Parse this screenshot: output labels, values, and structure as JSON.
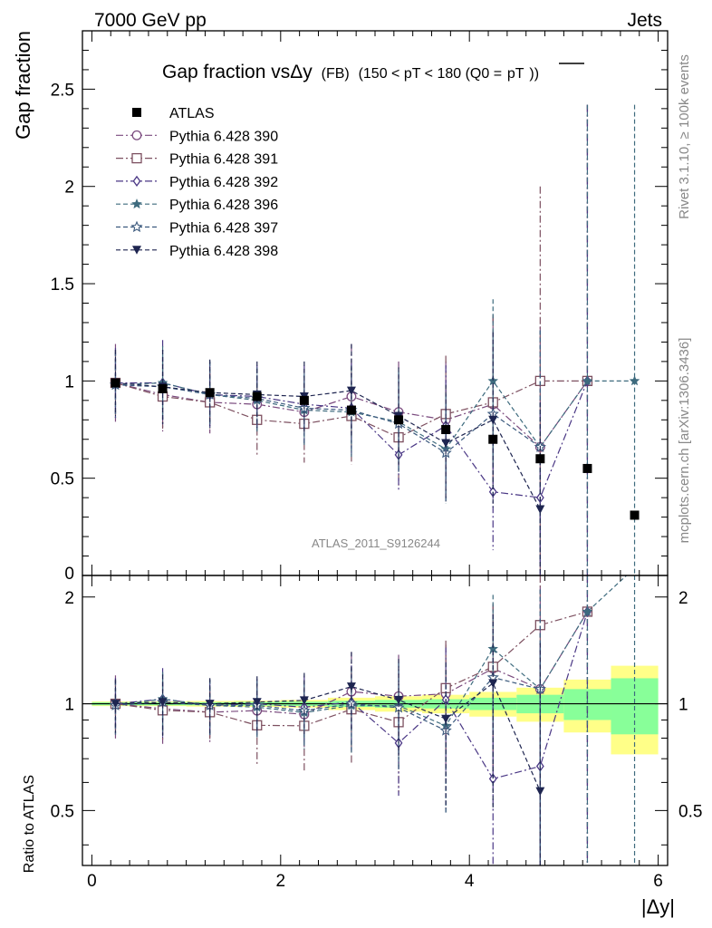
{
  "header": {
    "left": "7000 GeV pp",
    "right": "Jets"
  },
  "side_text": {
    "top": "Rivet 3.1.10, ≥ 100k events",
    "bottom": "mcplots.cern.ch [arXiv:1306.3436]"
  },
  "watermark": "ATLAS_2011_S9126244",
  "chart_data": {
    "type": "scatter",
    "title": "Gap fraction vsΔy",
    "title_fb": "(FB)",
    "title_cut": "(150 < pT < 180 (Q0 =",
    "title_over": "pT",
    "title_end": "))",
    "ylabel": "Gap fraction",
    "ratio_ylabel": "Ratio to ATLAS",
    "xlabel": "|Δy|",
    "xlim": [
      -0.1,
      6.1
    ],
    "ylim": [
      0,
      2.8
    ],
    "ratio_ylim": [
      0.35,
      2.3
    ],
    "x_ticks": [
      "0",
      "2",
      "4",
      "6"
    ],
    "y_ticks": [
      "0.5",
      "1",
      "1.5",
      "2",
      "2.5"
    ],
    "y_zero_label": "0",
    "ratio_ticks": [
      "0.5",
      "1",
      "2"
    ],
    "x": [
      0.25,
      0.75,
      1.25,
      1.75,
      2.25,
      2.75,
      3.25,
      3.75,
      4.25,
      4.75,
      5.25,
      5.75
    ],
    "atlas": {
      "name": "ATLAS",
      "values": [
        0.99,
        0.96,
        0.94,
        0.92,
        0.9,
        0.85,
        0.8,
        0.75,
        0.7,
        0.6,
        0.55,
        0.31
      ],
      "errors": [
        0.01,
        0.01,
        0.01,
        0.01,
        0.01,
        0.01,
        0.02,
        0.02,
        0.02,
        0.02,
        0.02,
        0.02
      ]
    },
    "band": {
      "x_edges": [
        [
          0,
          0.5
        ],
        [
          0.5,
          1
        ],
        [
          1,
          1.5
        ],
        [
          1.5,
          2
        ],
        [
          2,
          2.5
        ],
        [
          2.5,
          3
        ],
        [
          3,
          3.5
        ],
        [
          3.5,
          4
        ],
        [
          4,
          4.5
        ],
        [
          4.5,
          5
        ],
        [
          5,
          5.5
        ],
        [
          5.5,
          6
        ]
      ],
      "green": [
        0.01,
        0.01,
        0.01,
        0.012,
        0.014,
        0.02,
        0.025,
        0.03,
        0.04,
        0.06,
        0.1,
        0.18
      ],
      "yellow": [
        0.015,
        0.015,
        0.018,
        0.02,
        0.025,
        0.04,
        0.05,
        0.06,
        0.08,
        0.11,
        0.17,
        0.28
      ]
    },
    "series": [
      {
        "name": "Pythia 6.428 390",
        "color": "#7a4a7e",
        "dash": "8,3,2,3",
        "marker": "circle-open",
        "values": [
          0.99,
          0.93,
          0.89,
          0.88,
          0.84,
          0.92,
          0.84,
          0.8,
          0.88,
          0.66,
          1.0,
          null
        ],
        "errors": [
          0.2,
          0.19,
          0.16,
          0.14,
          0.16,
          0.27,
          0.26,
          0.3,
          0.45,
          0.62,
          1.42,
          null
        ]
      },
      {
        "name": "Pythia 6.428 391",
        "color": "#7d5060",
        "dash": "8,3,2,3",
        "marker": "square-open",
        "values": [
          0.99,
          0.92,
          0.89,
          0.8,
          0.78,
          0.82,
          0.71,
          0.83,
          0.89,
          1.0,
          1.0,
          null
        ],
        "errors": [
          0.17,
          0.17,
          0.15,
          0.18,
          0.2,
          0.25,
          0.26,
          0.3,
          0.45,
          1.0,
          1.42,
          null
        ]
      },
      {
        "name": "Pythia 6.428 392",
        "color": "#4a3785",
        "dash": "8,3,2,3",
        "marker": "diamond-open",
        "values": [
          0.99,
          0.99,
          0.93,
          0.92,
          0.88,
          0.86,
          0.62,
          0.77,
          0.43,
          0.4,
          1.0,
          null
        ],
        "errors": [
          0.18,
          0.22,
          0.17,
          0.16,
          0.2,
          0.23,
          0.18,
          0.31,
          0.3,
          0.45,
          1.42,
          null
        ]
      },
      {
        "name": "Pythia 6.428 396",
        "color": "#3e6b7e",
        "dash": "5,3",
        "marker": "star-filled",
        "values": [
          0.98,
          0.99,
          0.93,
          0.9,
          0.85,
          0.84,
          0.79,
          0.65,
          1.0,
          0.66,
          1.0,
          1.0
        ],
        "errors": [
          0.17,
          0.19,
          0.17,
          0.16,
          0.18,
          0.23,
          0.26,
          0.28,
          0.42,
          0.6,
          1.42,
          1.42
        ]
      },
      {
        "name": "Pythia 6.428 397",
        "color": "#3c5a7e",
        "dash": "5,3",
        "marker": "star-open",
        "values": [
          0.98,
          0.97,
          0.93,
          0.91,
          0.86,
          0.85,
          0.78,
          0.63,
          0.83,
          0.66,
          null,
          null
        ],
        "errors": [
          0.17,
          0.19,
          0.17,
          0.16,
          0.18,
          0.23,
          0.26,
          0.26,
          0.42,
          0.6,
          null,
          null
        ]
      },
      {
        "name": "Pythia 6.428 398",
        "color": "#1e2550",
        "dash": "5,3",
        "marker": "triangle-down-filled",
        "values": [
          0.99,
          0.97,
          0.94,
          0.93,
          0.92,
          0.95,
          0.82,
          0.68,
          0.8,
          0.34,
          null,
          null
        ],
        "errors": [
          0.17,
          0.19,
          0.17,
          0.17,
          0.18,
          0.24,
          0.25,
          0.3,
          0.45,
          0.55,
          null,
          null
        ]
      }
    ]
  }
}
